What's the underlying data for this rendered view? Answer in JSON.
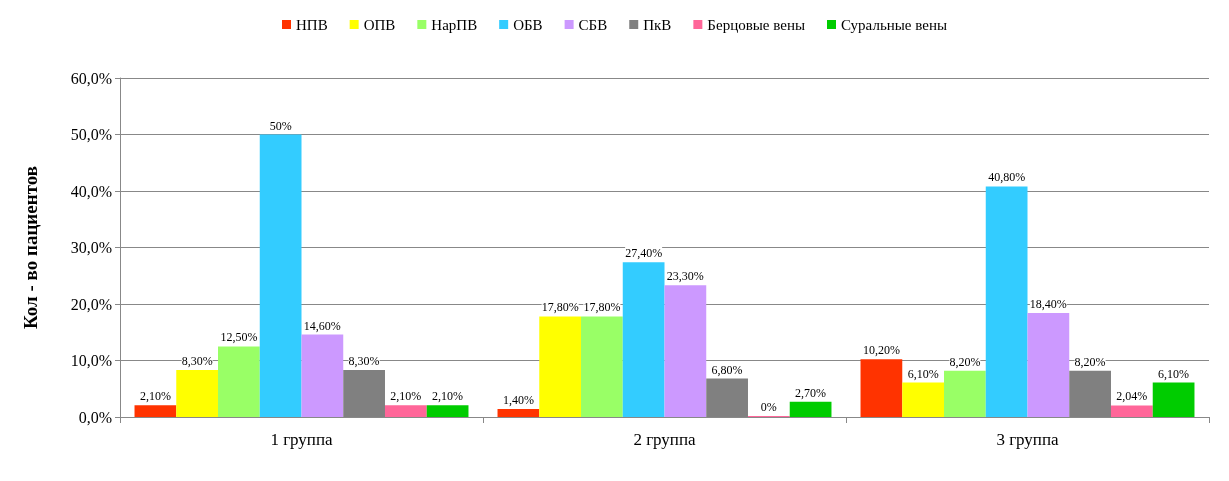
{
  "chart_data": {
    "type": "bar",
    "ylabel": "Кол - во пациентов",
    "categories": [
      "1 группа",
      "2 группа",
      "3 группа"
    ],
    "ylim": [
      0,
      60
    ],
    "yticks": [
      {
        "value": 0,
        "label": "0,0%"
      },
      {
        "value": 10,
        "label": "10,0%"
      },
      {
        "value": 20,
        "label": "20,0%"
      },
      {
        "value": 30,
        "label": "30,0%"
      },
      {
        "value": 40,
        "label": "40,0%"
      },
      {
        "value": 50,
        "label": "50,0%"
      },
      {
        "value": 60,
        "label": "60,0%"
      }
    ],
    "grid": "y",
    "legend": "top",
    "series": [
      {
        "name": "НПВ",
        "color": "#ff3300",
        "values": [
          2.1,
          1.4,
          10.2
        ],
        "value_labels": [
          "2,10%",
          "1,40%",
          "10,20%"
        ]
      },
      {
        "name": "ОПВ",
        "color": "#ffff00",
        "values": [
          8.3,
          17.8,
          6.1
        ],
        "value_labels": [
          "8,30%",
          "17,80%",
          "6,10%"
        ]
      },
      {
        "name": "НарПВ",
        "color": "#99ff66",
        "values": [
          12.5,
          17.8,
          8.2
        ],
        "value_labels": [
          "12,50%",
          "17,80%",
          "8,20%"
        ]
      },
      {
        "name": "ОБВ",
        "color": "#33ccff",
        "values": [
          50,
          27.4,
          40.8
        ],
        "value_labels": [
          "50%",
          "27,40%",
          "40,80%"
        ]
      },
      {
        "name": "СБВ",
        "color": "#cc99ff",
        "values": [
          14.6,
          23.3,
          18.4
        ],
        "value_labels": [
          "14,60%",
          "23,30%",
          "18,40%"
        ]
      },
      {
        "name": "ПкВ",
        "color": "#808080",
        "values": [
          8.3,
          6.8,
          8.2
        ],
        "value_labels": [
          "8,30%",
          "6,80%",
          "8,20%"
        ]
      },
      {
        "name": "Берцовые вены",
        "color": "#ff6699",
        "values": [
          2.1,
          0,
          2.04
        ],
        "value_labels": [
          "2,10%",
          "0%",
          "2,04%"
        ]
      },
      {
        "name": "Суральные вены",
        "color": "#00cc00",
        "values": [
          2.1,
          2.7,
          6.1
        ],
        "value_labels": [
          "2,10%",
          "2,70%",
          "6,10%"
        ]
      }
    ]
  }
}
